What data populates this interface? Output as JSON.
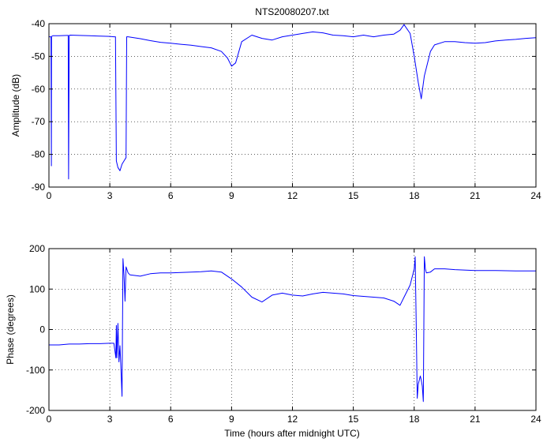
{
  "chart_data": [
    {
      "type": "line",
      "title": "NTS20080207.txt",
      "xlabel": "",
      "ylabel": "Amplitude (dB)",
      "xlim": [
        0,
        24
      ],
      "ylim": [
        -90,
        -40
      ],
      "xticks": [
        "0",
        "3",
        "6",
        "9",
        "12",
        "15",
        "18",
        "21",
        "24"
      ],
      "yticks": [
        "-90",
        "-80",
        "-70",
        "-60",
        "-50",
        "-40"
      ],
      "grid": true,
      "series_color": "#0000ff",
      "series": [
        {
          "x": [
            0,
            0.05,
            0.1,
            0.12,
            0.13,
            0.15,
            0.2,
            0.5,
            0.9,
            0.95,
            0.97,
            1.0,
            1.05,
            1.5,
            2.0,
            2.5,
            3.0,
            3.2,
            3.28,
            3.32,
            3.4,
            3.5,
            3.6,
            3.7,
            3.8,
            3.83,
            3.9,
            4.5,
            5.0,
            5.5,
            6.0,
            6.5,
            7.0,
            7.5,
            8.0,
            8.5,
            8.8,
            9.0,
            9.2,
            9.5,
            10.0,
            10.5,
            11.0,
            11.5,
            12.0,
            12.5,
            13.0,
            13.5,
            14.0,
            14.5,
            15.0,
            15.5,
            16.0,
            16.5,
            17.0,
            17.3,
            17.5,
            17.8,
            18.0,
            18.2,
            18.35,
            18.5,
            18.8,
            19.0,
            19.5,
            20.0,
            20.5,
            21.0,
            21.5,
            22.0,
            22.5,
            23.0,
            23.5,
            24.0
          ],
          "y": [
            -44,
            -44,
            -44,
            -83.5,
            -44,
            -43.8,
            -43.7,
            -43.7,
            -43.6,
            -43.6,
            -87.5,
            -43.6,
            -43.5,
            -43.6,
            -43.7,
            -43.8,
            -43.9,
            -44,
            -44,
            -82,
            -84,
            -85,
            -83,
            -82,
            -81,
            -44,
            -44,
            -44.6,
            -45.2,
            -45.7,
            -46,
            -46.3,
            -46.6,
            -47,
            -47.4,
            -48.5,
            -50.5,
            -53,
            -52,
            -45.5,
            -43.5,
            -44.5,
            -45,
            -44,
            -43.5,
            -43,
            -42.5,
            -42.8,
            -43.5,
            -43.7,
            -44,
            -43.5,
            -44,
            -43.5,
            -43.2,
            -42,
            -40.3,
            -43,
            -50,
            -58,
            -63,
            -56,
            -48.5,
            -46.5,
            -45.5,
            -45.5,
            -45.8,
            -46,
            -45.8,
            -45.3,
            -45,
            -44.8,
            -44.5,
            -44.3
          ]
        }
      ]
    },
    {
      "type": "line",
      "title": "",
      "xlabel": "Time (hours after midnight UTC)",
      "ylabel": "Phase (degrees)",
      "xlim": [
        0,
        24
      ],
      "ylim": [
        -200,
        200
      ],
      "xticks": [
        "0",
        "3",
        "6",
        "9",
        "12",
        "15",
        "18",
        "21",
        "24"
      ],
      "yticks": [
        "-200",
        "-100",
        "0",
        "100",
        "200"
      ],
      "grid": true,
      "series_color": "#0000ff",
      "series": [
        {
          "x": [
            0,
            0.5,
            1.0,
            1.5,
            2.0,
            2.5,
            3.0,
            3.2,
            3.3,
            3.32,
            3.35,
            3.4,
            3.45,
            3.5,
            3.55,
            3.6,
            3.65,
            3.7,
            3.75,
            3.8,
            3.9,
            4.0,
            4.5,
            5.0,
            5.5,
            6.0,
            6.5,
            7.0,
            7.5,
            8.0,
            8.5,
            8.8,
            9.0,
            9.5,
            10.0,
            10.5,
            11.0,
            11.5,
            12.0,
            12.5,
            13.0,
            13.5,
            14.0,
            14.5,
            15.0,
            15.5,
            16.0,
            16.5,
            17.0,
            17.3,
            17.5,
            17.8,
            18.0,
            18.05,
            18.1,
            18.15,
            18.2,
            18.3,
            18.35,
            18.4,
            18.45,
            18.5,
            18.55,
            18.6,
            18.8,
            19.0,
            19.5,
            20.0,
            21.0,
            22.0,
            23.0,
            24.0
          ],
          "y": [
            -38,
            -38,
            -36,
            -36,
            -35,
            -35,
            -34,
            -34,
            -70,
            10,
            -70,
            15,
            -80,
            -40,
            -100,
            -165,
            175,
            135,
            70,
            155,
            140,
            135,
            132,
            138,
            140,
            140,
            141,
            142,
            143,
            145,
            142,
            132,
            125,
            105,
            80,
            68,
            85,
            90,
            85,
            83,
            88,
            92,
            90,
            88,
            84,
            82,
            80,
            78,
            70,
            60,
            80,
            110,
            150,
            180,
            15,
            -170,
            -135,
            -115,
            -125,
            -140,
            -178,
            180,
            150,
            140,
            142,
            150,
            150,
            148,
            146,
            146,
            145,
            145
          ]
        }
      ]
    }
  ]
}
